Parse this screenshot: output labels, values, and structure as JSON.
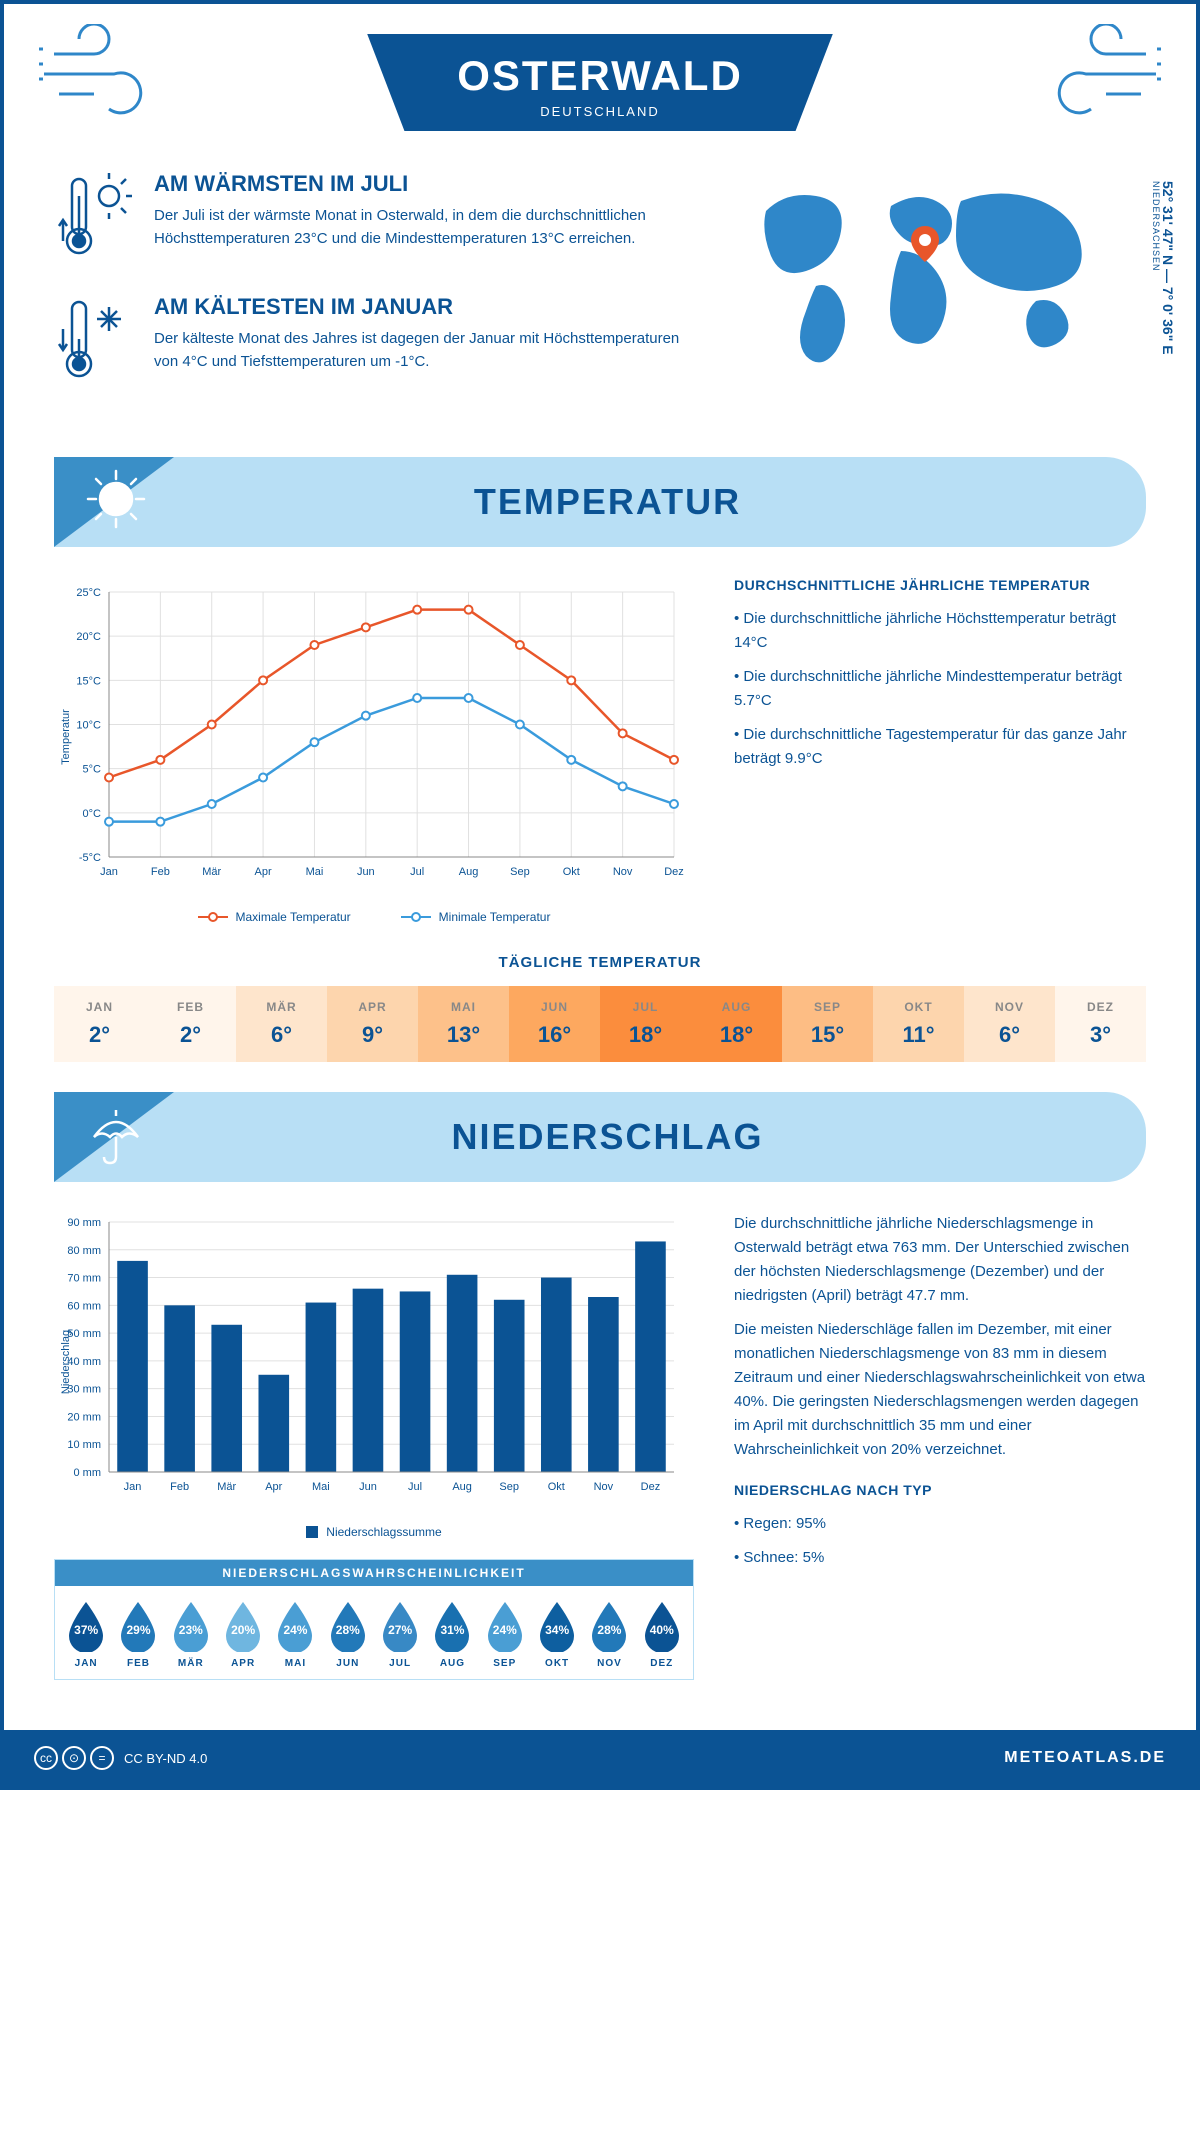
{
  "header": {
    "title": "OSTERWALD",
    "subtitle": "DEUTSCHLAND"
  },
  "intro": {
    "warm": {
      "title": "AM WÄRMSTEN IM JULI",
      "text": "Der Juli ist der wärmste Monat in Osterwald, in dem die durchschnittlichen Höchsttemperaturen 23°C und die Mindesttemperaturen 13°C erreichen."
    },
    "cold": {
      "title": "AM KÄLTESTEN IM JANUAR",
      "text": "Der kälteste Monat des Jahres ist dagegen der Januar mit Höchsttemperaturen von 4°C und Tiefsttemperaturen um -1°C."
    },
    "coords": "52° 31' 47\" N — 7° 0' 36\" E",
    "region": "NIEDERSACHSEN"
  },
  "sections": {
    "temperature": "TEMPERATUR",
    "precipitation": "NIEDERSCHLAG"
  },
  "temperature_chart": {
    "type": "line",
    "months": [
      "Jan",
      "Feb",
      "Mär",
      "Apr",
      "Mai",
      "Jun",
      "Jul",
      "Aug",
      "Sep",
      "Okt",
      "Nov",
      "Dez"
    ],
    "max_series": [
      4,
      6,
      10,
      15,
      19,
      21,
      23,
      23,
      19,
      15,
      9,
      6
    ],
    "min_series": [
      -1,
      -1,
      1,
      4,
      8,
      11,
      13,
      13,
      10,
      6,
      3,
      1
    ],
    "max_color": "#e8562a",
    "min_color": "#3a9bdc",
    "ylabel": "Temperatur",
    "ylim": [
      -5,
      25
    ],
    "ytick_step": 5,
    "y_suffix": "°C",
    "grid_color": "#e0e0e0",
    "legend_max": "Maximale Temperatur",
    "legend_min": "Minimale Temperatur"
  },
  "temperature_side": {
    "title": "DURCHSCHNITTLICHE JÄHRLICHE TEMPERATUR",
    "bullets": [
      "• Die durchschnittliche jährliche Höchsttemperatur beträgt 14°C",
      "• Die durchschnittliche jährliche Mindesttemperatur beträgt 5.7°C",
      "• Die durchschnittliche Tagestemperatur für das ganze Jahr beträgt 9.9°C"
    ]
  },
  "daily_temp": {
    "title": "TÄGLICHE TEMPERATUR",
    "months": [
      "JAN",
      "FEB",
      "MÄR",
      "APR",
      "MAI",
      "JUN",
      "JUL",
      "AUG",
      "SEP",
      "OKT",
      "NOV",
      "DEZ"
    ],
    "values": [
      "2°",
      "2°",
      "6°",
      "9°",
      "13°",
      "16°",
      "18°",
      "18°",
      "15°",
      "11°",
      "6°",
      "3°"
    ],
    "colors": [
      "#fff5eb",
      "#fff5eb",
      "#fee5cc",
      "#fdd5ad",
      "#fdc18a",
      "#fda85f",
      "#fb8d3d",
      "#fb8d3d",
      "#fdbd84",
      "#fdd5ad",
      "#fee5cc",
      "#fff5eb"
    ]
  },
  "precip_chart": {
    "type": "bar",
    "months": [
      "Jan",
      "Feb",
      "Mär",
      "Apr",
      "Mai",
      "Jun",
      "Jul",
      "Aug",
      "Sep",
      "Okt",
      "Nov",
      "Dez"
    ],
    "values": [
      76,
      60,
      53,
      35,
      61,
      66,
      65,
      71,
      62,
      70,
      63,
      83
    ],
    "bar_color": "#0b5394",
    "ylabel": "Niederschlag",
    "ylim": [
      0,
      90
    ],
    "ytick_step": 10,
    "y_suffix": " mm",
    "grid_color": "#e0e0e0",
    "legend": "Niederschlagssumme"
  },
  "precip_side": {
    "para1": "Die durchschnittliche jährliche Niederschlagsmenge in Osterwald beträgt etwa 763 mm. Der Unterschied zwischen der höchsten Niederschlagsmenge (Dezember) und der niedrigsten (April) beträgt 47.7 mm.",
    "para2": "Die meisten Niederschläge fallen im Dezember, mit einer monatlichen Niederschlagsmenge von 83 mm in diesem Zeitraum und einer Niederschlagswahrscheinlichkeit von etwa 40%. Die geringsten Niederschlagsmengen werden dagegen im April mit durchschnittlich 35 mm und einer Wahrscheinlichkeit von 20% verzeichnet.",
    "type_title": "NIEDERSCHLAG NACH TYP",
    "type_bullets": [
      "• Regen: 95%",
      "• Schnee: 5%"
    ]
  },
  "precip_prob": {
    "title": "NIEDERSCHLAGSWAHRSCHEINLICHKEIT",
    "months": [
      "JAN",
      "FEB",
      "MÄR",
      "APR",
      "MAI",
      "JUN",
      "JUL",
      "AUG",
      "SEP",
      "OKT",
      "NOV",
      "DEZ"
    ],
    "values": [
      "37%",
      "29%",
      "23%",
      "20%",
      "24%",
      "28%",
      "27%",
      "31%",
      "24%",
      "34%",
      "28%",
      "40%"
    ],
    "colors": [
      "#0b5394",
      "#2279b9",
      "#4a9ed4",
      "#6fb6e0",
      "#4a9ed4",
      "#2279b9",
      "#3889c5",
      "#1970b0",
      "#4a9ed4",
      "#0e5fa0",
      "#2279b9",
      "#0b5394"
    ]
  },
  "footer": {
    "license": "CC BY-ND 4.0",
    "site": "METEOATLAS.DE"
  },
  "colors": {
    "primary": "#0b5394",
    "light_blue": "#b8dff5",
    "mid_blue": "#3a8fc7",
    "map_blue": "#2f87c9",
    "orange": "#e8562a"
  }
}
